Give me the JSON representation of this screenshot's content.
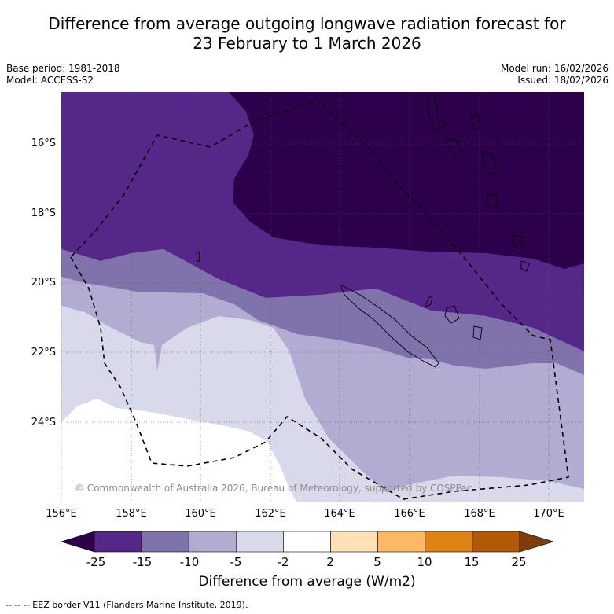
{
  "title_line1": "Difference from average outgoing longwave radiation forecast for",
  "title_line2": "23 February to 1 March 2026",
  "meta_left": {
    "base_period": "Base period: 1981-2018",
    "model": "Model: ACCESS-S2"
  },
  "meta_right": {
    "model_run": "Model run: 16/02/2026",
    "issued": "Issued: 18/02/2026"
  },
  "map": {
    "lat_labels": [
      "16°S",
      "18°S",
      "20°S",
      "22°S",
      "24°S"
    ],
    "lon_labels": [
      "156°E",
      "158°E",
      "160°E",
      "162°E",
      "164°E",
      "166°E",
      "168°E",
      "170°E"
    ],
    "extent": {
      "lon_min": 156,
      "lon_max": 171,
      "lat_min": -26.3,
      "lat_max": -14.5
    },
    "copyright": "© Commonwealth of Australia 2026, Bureau of Meteorology, supported by COSPPac"
  },
  "colorbar": {
    "ticks": [
      "-25",
      "-15",
      "-10",
      "-5",
      "-2",
      "2",
      "5",
      "10",
      "15",
      "25"
    ],
    "colors": [
      "#2d004b",
      "#542788",
      "#8073ac",
      "#b2abd2",
      "#d8daeb",
      "#ffffff",
      "#fee0b6",
      "#fdb863",
      "#e08214",
      "#b35806",
      "#7f3b08"
    ],
    "label": "Difference from average (W/m2)"
  },
  "footer": "--  --  -- EEZ border V11 (Flanders Marine Institute, 2019)."
}
